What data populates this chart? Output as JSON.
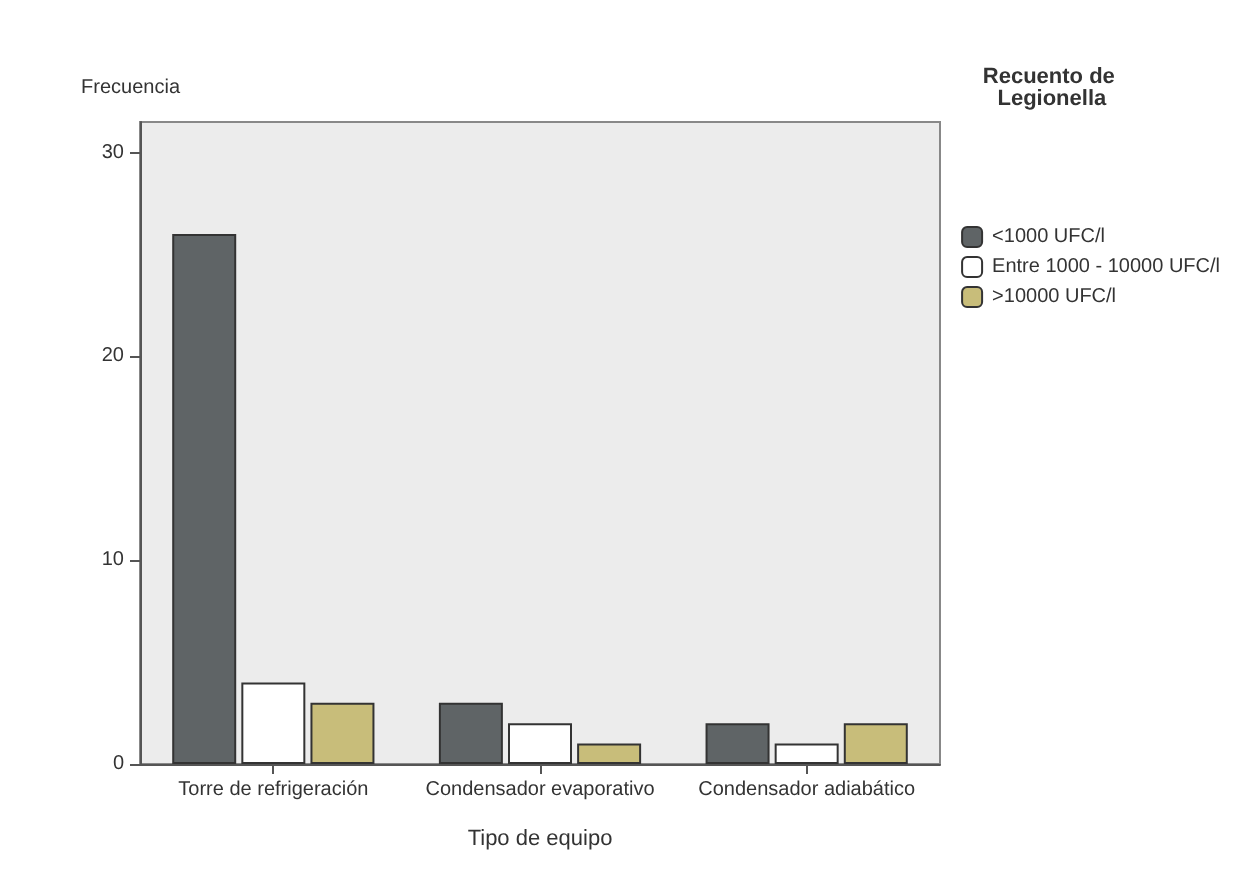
{
  "chart_data": {
    "type": "bar",
    "xlabel": "Tipo de equipo",
    "ylabel": "Frecuencia",
    "legend_title": "Recuento de Legionella",
    "categories": [
      "Torre de refrigeración",
      "Condensador evaporativo",
      "Condensador adiabático"
    ],
    "series": [
      {
        "name": "<1000 UFC/l",
        "color": "#5f6466",
        "values": [
          26,
          3,
          2
        ]
      },
      {
        "name": "Entre 1000 - 10000 UFC/l",
        "color": "#ffffff",
        "values": [
          4,
          2,
          1
        ]
      },
      {
        "name": ">10000 UFC/l",
        "color": "#c8bd7a",
        "values": [
          3,
          1,
          2
        ]
      }
    ],
    "ylim": [
      0,
      31.5
    ],
    "yticks": [
      0,
      10,
      20,
      30
    ],
    "grid": false,
    "legend": "right"
  }
}
